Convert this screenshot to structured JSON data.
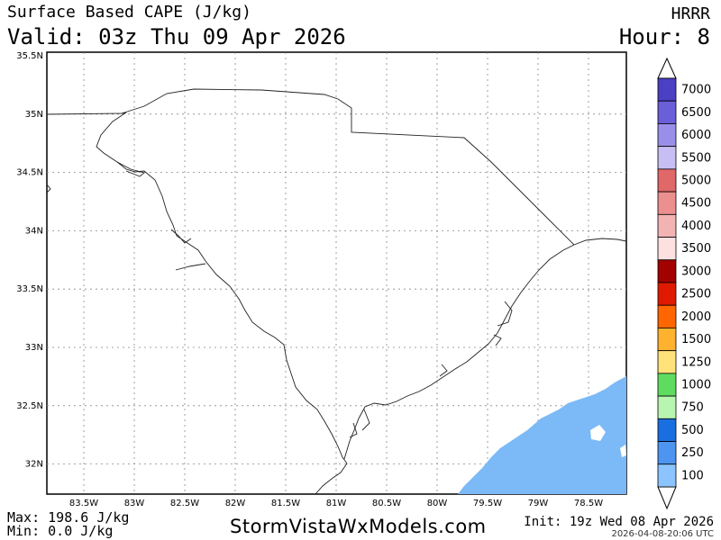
{
  "header": {
    "title": "Surface Based CAPE (J/kg)",
    "valid": "Valid: 03z Thu 09 Apr 2026",
    "model": "HRRR",
    "hour": "Hour: 8"
  },
  "map": {
    "region": "South Carolina",
    "lon_labels": [
      "83.5W",
      "83W",
      "82.5W",
      "82W",
      "81.5W",
      "81W",
      "80.5W",
      "80W",
      "79.5W",
      "79W",
      "78.5W"
    ],
    "lat_labels": [
      "35.5N",
      "35N",
      "34.5N",
      "34N",
      "33.5N",
      "33N",
      "32.5N",
      "32N"
    ],
    "fill_color": "#7cb9f7"
  },
  "colorbar": {
    "levels": [
      {
        "label": "7000",
        "color": "#4b3fc4"
      },
      {
        "label": "6500",
        "color": "#6a5ed9"
      },
      {
        "label": "6000",
        "color": "#9a8fe8"
      },
      {
        "label": "5500",
        "color": "#c7bff4"
      },
      {
        "label": "5000",
        "color": "#e06868"
      },
      {
        "label": "4500",
        "color": "#ec8f8f"
      },
      {
        "label": "4000",
        "color": "#f4b3b3"
      },
      {
        "label": "3500",
        "color": "#fde0e0"
      },
      {
        "label": "3000",
        "color": "#a30000"
      },
      {
        "label": "2500",
        "color": "#e01a00"
      },
      {
        "label": "2000",
        "color": "#ff6600"
      },
      {
        "label": "1500",
        "color": "#ffb22e"
      },
      {
        "label": "1250",
        "color": "#ffe27a"
      },
      {
        "label": "1000",
        "color": "#5fdc5f"
      },
      {
        "label": "750",
        "color": "#b7f5b0"
      },
      {
        "label": "500",
        "color": "#1a6fe0"
      },
      {
        "label": "250",
        "color": "#4d95f0"
      },
      {
        "label": "100",
        "color": "#8cc4ff"
      }
    ]
  },
  "footer": {
    "max": "Max: 198.6 J/kg",
    "min": "Min: 0.0 J/kg",
    "site": "StormVistaWxModels.com",
    "init": "Init: 19z Wed 08 Apr 2026",
    "stamp": "2026-04-08-20:06 UTC"
  }
}
